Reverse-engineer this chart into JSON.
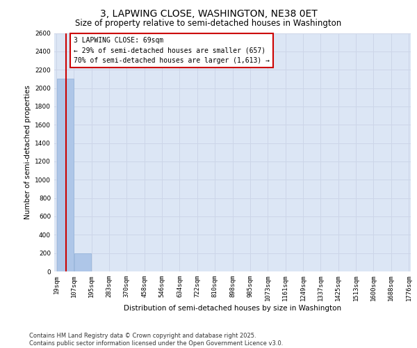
{
  "title": "3, LAPWING CLOSE, WASHINGTON, NE38 0ET",
  "subtitle": "Size of property relative to semi-detached houses in Washington",
  "xlabel": "Distribution of semi-detached houses by size in Washington",
  "ylabel": "Number of semi-detached properties",
  "annotation_text_line1": "3 LAPWING CLOSE: 69sqm",
  "annotation_text_line2": "← 29% of semi-detached houses are smaller (657)",
  "annotation_text_line3": "70% of semi-detached houses are larger (1,613) →",
  "bin_edges": [
    19,
    107,
    195,
    283,
    370,
    458,
    546,
    634,
    722,
    810,
    898,
    985,
    1073,
    1161,
    1249,
    1337,
    1425,
    1513,
    1600,
    1688,
    1776
  ],
  "bin_labels": [
    "19sqm",
    "107sqm",
    "195sqm",
    "283sqm",
    "370sqm",
    "458sqm",
    "546sqm",
    "634sqm",
    "722sqm",
    "810sqm",
    "898sqm",
    "985sqm",
    "1073sqm",
    "1161sqm",
    "1249sqm",
    "1337sqm",
    "1425sqm",
    "1513sqm",
    "1600sqm",
    "1688sqm",
    "1776sqm"
  ],
  "bar_heights": [
    2100,
    200,
    0,
    0,
    0,
    0,
    0,
    0,
    0,
    0,
    0,
    0,
    0,
    0,
    0,
    0,
    0,
    0,
    0,
    0
  ],
  "bar_color": "#aec6e8",
  "bar_edge_color": "#aec6e8",
  "grid_color": "#ccd5e8",
  "background_color": "#dce6f5",
  "vline_color": "#cc0000",
  "vline_x": 69,
  "ylim": [
    0,
    2600
  ],
  "yticks": [
    0,
    200,
    400,
    600,
    800,
    1000,
    1200,
    1400,
    1600,
    1800,
    2000,
    2200,
    2400,
    2600
  ],
  "footer_line1": "Contains HM Land Registry data © Crown copyright and database right 2025.",
  "footer_line2": "Contains public sector information licensed under the Open Government Licence v3.0.",
  "title_fontsize": 10,
  "subtitle_fontsize": 8.5,
  "label_fontsize": 7.5,
  "tick_fontsize": 6.5,
  "annotation_fontsize": 7,
  "footer_fontsize": 6
}
